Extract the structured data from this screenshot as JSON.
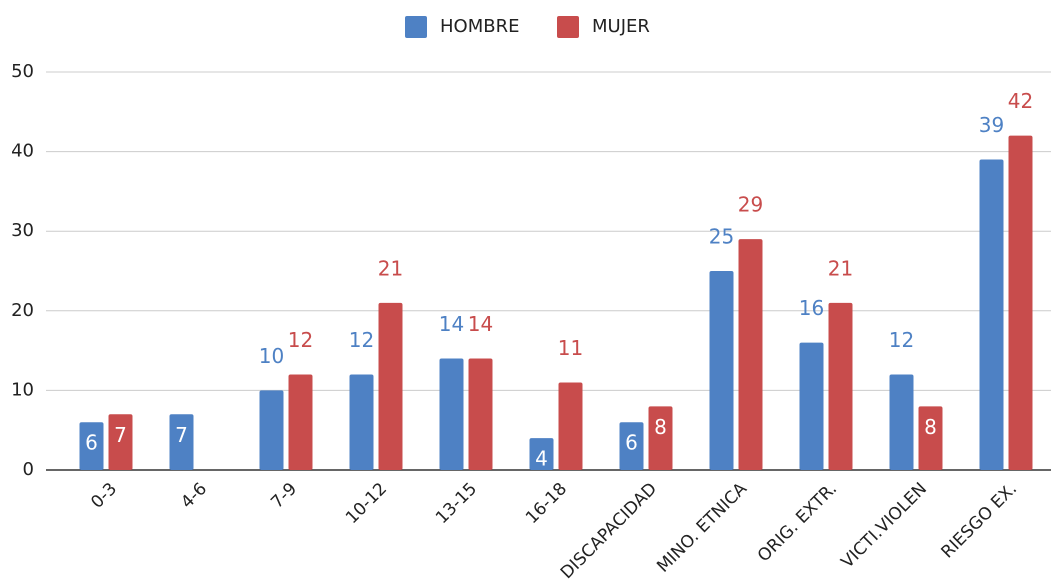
{
  "chart_data": {
    "type": "bar",
    "categories": [
      "0-3",
      "4-6",
      "7-9",
      "10-12",
      "13-15",
      "16-18",
      "DISCAPACIDAD",
      "MINO. ETNICA",
      "ORIG. EXTR.",
      "VICTI.VIOLEN",
      "RIESGO EX."
    ],
    "series": [
      {
        "name": "HOMBRE",
        "color": "#4e81c4",
        "values": [
          6,
          7,
          10,
          12,
          14,
          4,
          6,
          25,
          16,
          12,
          39
        ]
      },
      {
        "name": "MUJER",
        "color": "#c84c4c",
        "values": [
          7,
          null,
          12,
          21,
          14,
          11,
          8,
          29,
          21,
          8,
          42
        ]
      }
    ],
    "ylim": [
      0,
      50
    ],
    "yticks": [
      0,
      10,
      20,
      30,
      40,
      50
    ],
    "grid": true,
    "legend": "top"
  }
}
